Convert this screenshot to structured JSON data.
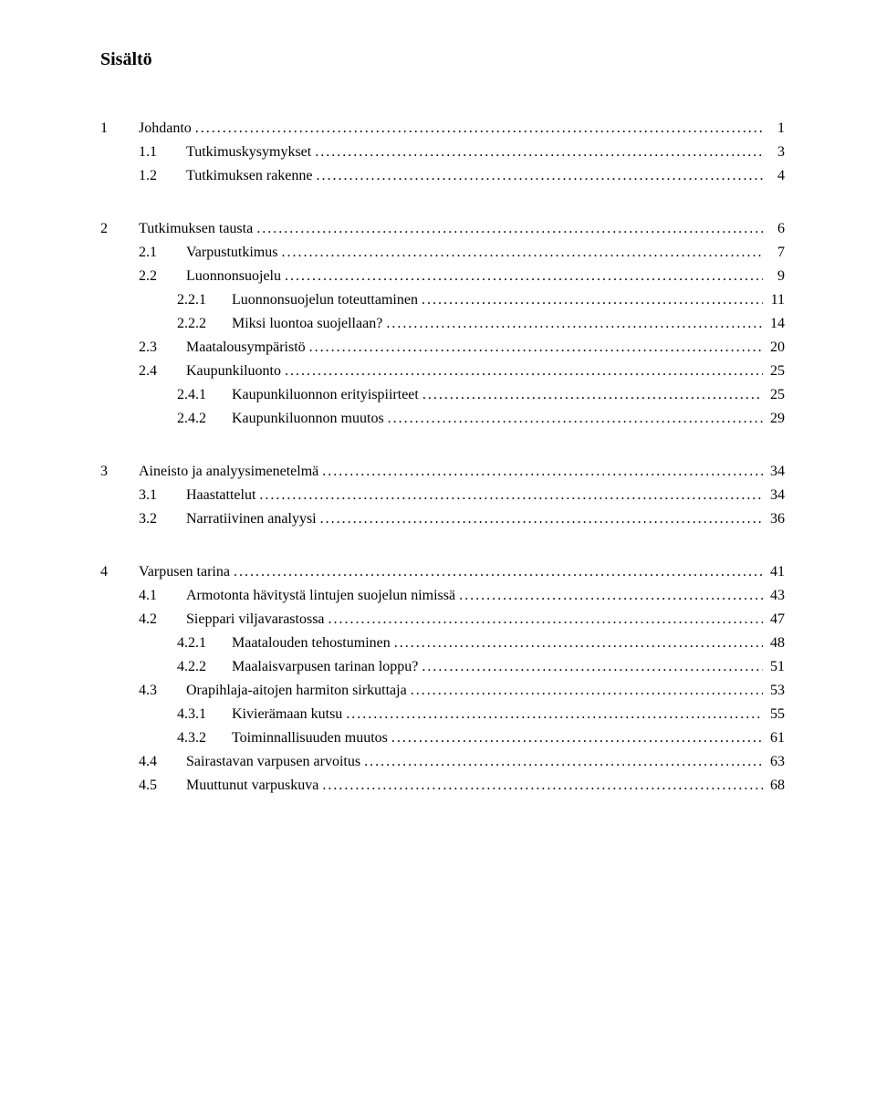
{
  "title": "Sisältö",
  "typography": {
    "font_family": "Times New Roman",
    "title_fontsize_pt": 15,
    "body_fontsize_pt": 12,
    "text_color": "#000000",
    "background_color": "#ffffff"
  },
  "toc": [
    {
      "level": 1,
      "num": "1",
      "label": "Johdanto",
      "page": "1",
      "gap_before": false
    },
    {
      "level": 2,
      "num": "1.1",
      "label": "Tutkimuskysymykset",
      "page": "3"
    },
    {
      "level": 2,
      "num": "1.2",
      "label": "Tutkimuksen rakenne",
      "page": "4"
    },
    {
      "level": 1,
      "num": "2",
      "label": "Tutkimuksen tausta",
      "page": "6",
      "gap_before": true
    },
    {
      "level": 2,
      "num": "2.1",
      "label": "Varpustutkimus",
      "page": "7"
    },
    {
      "level": 2,
      "num": "2.2",
      "label": "Luonnonsuojelu",
      "page": "9"
    },
    {
      "level": 3,
      "num": "2.2.1",
      "label": "Luonnonsuojelun toteuttaminen",
      "page": "11"
    },
    {
      "level": 3,
      "num": "2.2.2",
      "label": "Miksi luontoa suojellaan?",
      "page": "14"
    },
    {
      "level": 2,
      "num": "2.3",
      "label": "Maatalousympäristö",
      "page": "20"
    },
    {
      "level": 2,
      "num": "2.4",
      "label": "Kaupunkiluonto",
      "page": "25"
    },
    {
      "level": 3,
      "num": "2.4.1",
      "label": "Kaupunkiluonnon erityispiirteet",
      "page": "25"
    },
    {
      "level": 3,
      "num": "2.4.2",
      "label": "Kaupunkiluonnon muutos",
      "page": "29"
    },
    {
      "level": 1,
      "num": "3",
      "label": "Aineisto ja analyysimenetelmä",
      "page": "34",
      "gap_before": true
    },
    {
      "level": 2,
      "num": "3.1",
      "label": "Haastattelut",
      "page": "34"
    },
    {
      "level": 2,
      "num": "3.2",
      "label": "Narratiivinen analyysi",
      "page": "36"
    },
    {
      "level": 1,
      "num": "4",
      "label": "Varpusen tarina",
      "page": "41",
      "gap_before": true
    },
    {
      "level": 2,
      "num": "4.1",
      "label": "Armotonta hävitystä lintujen suojelun nimissä",
      "page": "43"
    },
    {
      "level": 2,
      "num": "4.2",
      "label": "Sieppari viljavarastossa",
      "page": "47"
    },
    {
      "level": 3,
      "num": "4.2.1",
      "label": "Maatalouden tehostuminen",
      "page": "48"
    },
    {
      "level": 3,
      "num": "4.2.2",
      "label": "Maalaisvarpusen tarinan loppu?",
      "page": "51"
    },
    {
      "level": 2,
      "num": "4.3",
      "label": "Orapihlaja-aitojen harmiton sirkuttaja",
      "page": "53"
    },
    {
      "level": 3,
      "num": "4.3.1",
      "label": "Kivierämaan kutsu",
      "page": "55"
    },
    {
      "level": 3,
      "num": "4.3.2",
      "label": "Toiminnallisuuden muutos",
      "page": "61"
    },
    {
      "level": 2,
      "num": "4.4",
      "label": "Sairastavan varpusen arvoitus",
      "page": "63"
    },
    {
      "level": 2,
      "num": "4.5",
      "label": "Muuttunut varpuskuva",
      "page": "68"
    }
  ]
}
